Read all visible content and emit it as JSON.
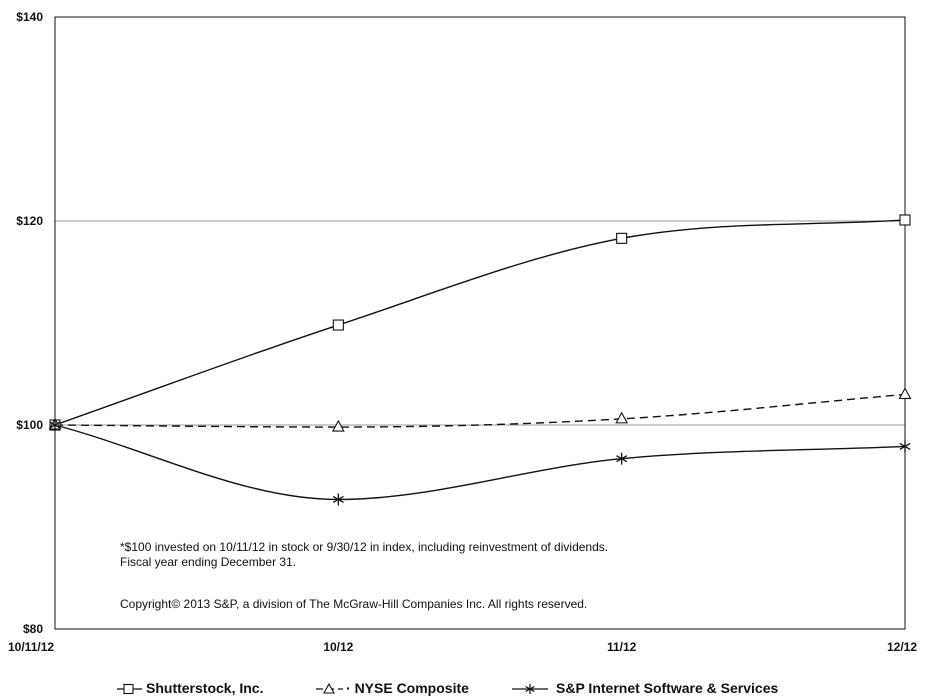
{
  "chart_data": {
    "type": "line",
    "title": "",
    "xlabel": "",
    "ylabel": "",
    "categories": [
      "10/11/12",
      "10/12",
      "11/12",
      "12/12"
    ],
    "y_tick_labels": [
      "$80",
      "$100",
      "$120",
      "$140"
    ],
    "ylim": [
      80,
      140
    ],
    "gridlines": [
      100,
      120
    ],
    "legend_position": "bottom",
    "series": [
      {
        "name": "Shutterstock, Inc.",
        "values": [
          100,
          109.8,
          118.3,
          120.1
        ],
        "marker": "square",
        "line_style": "solid",
        "legend_glyph": "—⊟—",
        "color": "#111111"
      },
      {
        "name": "NYSE Composite",
        "values": [
          100,
          99.8,
          100.6,
          103.0
        ],
        "marker": "triangle",
        "line_style": "dashed",
        "legend_glyph": "– △ ·",
        "color": "#111111"
      },
      {
        "name": "S&P Internet Software & Services",
        "values": [
          100,
          92.7,
          96.7,
          97.9
        ],
        "marker": "asterisk",
        "line_style": "solid",
        "legend_glyph": "—✱—",
        "color": "#111111"
      }
    ],
    "annotations": [
      "*$100 invested on 10/11/12 in stock or 9/30/12 in index, including reinvestment of dividends.",
      "Fiscal year ending December 31.",
      "Copyright© 2013 S&P, a division of The McGraw-Hill Companies Inc. All rights reserved."
    ]
  }
}
